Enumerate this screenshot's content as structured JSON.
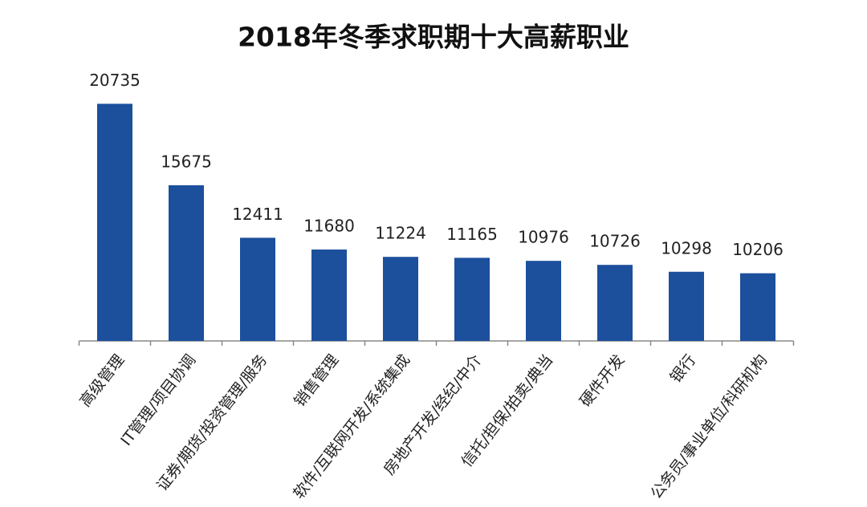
{
  "chart_data": {
    "type": "bar",
    "title": "2018年冬季求职期十大高薪职业",
    "categories": [
      "高级管理",
      "IT管理/项目协调",
      "证券/期货/投资管理/服务",
      "销售管理",
      "软件/互联网开发/系统集成",
      "房地产开发/经纪/中介",
      "信托/担保/拍卖/典当",
      "硬件开发",
      "银行",
      "公务员/事业单位/科研机构"
    ],
    "values": [
      20735,
      15675,
      12411,
      11680,
      11224,
      11165,
      10976,
      10726,
      10298,
      10206
    ],
    "color": "#1c4f9c",
    "ylim": [
      6000,
      22000
    ]
  }
}
